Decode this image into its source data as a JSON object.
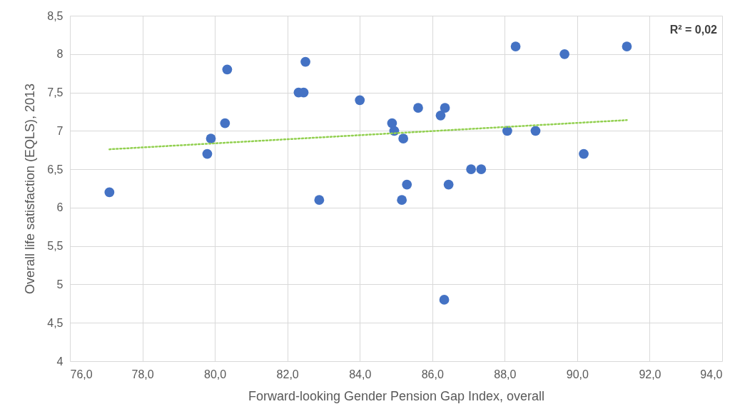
{
  "chart_data": {
    "type": "scatter",
    "xlabel": "Forward-looking Gender Pension Gap Index, overall",
    "ylabel": "Overall life satisfaction (EQLS), 2013",
    "annotations": [
      "R² = 0,02"
    ],
    "xlim": [
      76,
      94
    ],
    "xticks": [
      {
        "value": 76,
        "label": "76,0"
      },
      {
        "value": 78,
        "label": "78,0"
      },
      {
        "value": 80,
        "label": "80,0"
      },
      {
        "value": 82,
        "label": "82,0"
      },
      {
        "value": 84,
        "label": "84,0"
      },
      {
        "value": 86,
        "label": "86,0"
      },
      {
        "value": 88,
        "label": "88,0"
      },
      {
        "value": 90,
        "label": "90,0"
      },
      {
        "value": 92,
        "label": "92,0"
      },
      {
        "value": 94,
        "label": "94,0"
      }
    ],
    "ylim": [
      4,
      8.5
    ],
    "yticks": [
      4,
      {
        "value": 4.5,
        "label": "4,5"
      },
      5,
      {
        "value": 5.5,
        "label": "5,5"
      },
      6,
      {
        "value": 6.5,
        "label": "6,5"
      },
      7,
      {
        "value": 7.5,
        "label": "7,5"
      },
      8,
      {
        "value": 8.5,
        "label": "8,5"
      }
    ],
    "grid": true,
    "series": [
      {
        "marker": "circle",
        "color": "#4472c4",
        "x": [
          77.09,
          79.79,
          79.89,
          80.28,
          80.34,
          82.31,
          82.45,
          82.5,
          82.88,
          84.0,
          84.89,
          84.95,
          85.2,
          85.16,
          85.3,
          85.61,
          86.23,
          86.35,
          86.33,
          86.45,
          87.07,
          87.35,
          88.07,
          88.3,
          88.85,
          89.65,
          90.18,
          91.37
        ],
        "values": [
          6.2,
          6.7,
          6.9,
          7.1,
          7.8,
          7.5,
          7.5,
          7.9,
          6.1,
          7.4,
          7.1,
          7.0,
          6.9,
          6.1,
          6.3,
          7.3,
          7.2,
          7.3,
          4.8,
          6.3,
          6.5,
          6.5,
          7.0,
          8.1,
          7.0,
          8.0,
          6.7,
          8.1
        ]
      },
      {
        "type": "line",
        "color": "#92d050",
        "line_style": "dotted",
        "marker": "none",
        "x": [
          77.09,
          91.37
        ],
        "values": [
          6.76,
          7.14
        ]
      }
    ]
  }
}
